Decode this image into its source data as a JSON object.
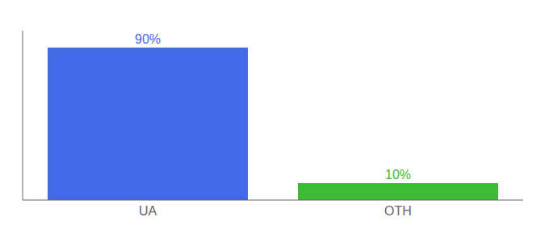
{
  "chart_data": {
    "type": "bar",
    "categories": [
      "UA",
      "OTH"
    ],
    "values": [
      90,
      10
    ],
    "value_labels": [
      "90%",
      "10%"
    ],
    "colors": [
      "#4169e8",
      "#3dbb35"
    ],
    "ylim": [
      0,
      100
    ],
    "yticks": [],
    "tick_labels": "x",
    "grid": false,
    "data_labels": true
  }
}
